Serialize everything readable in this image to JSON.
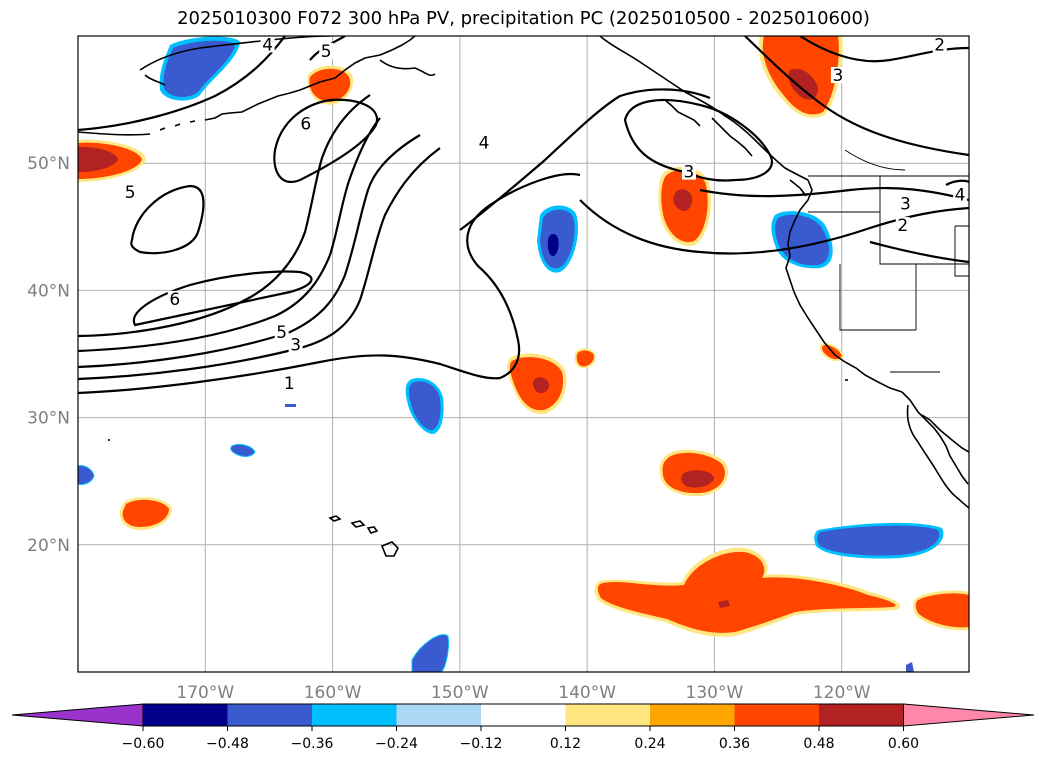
{
  "title": "2025010300 F072 300 hPa PV, precipitation PC (2025010500 - 2025010600)",
  "map": {
    "lon_range": [
      -180,
      -110
    ],
    "lat_range": [
      10,
      60
    ],
    "lat_ticks": [
      {
        "value": 20,
        "label": "20°N"
      },
      {
        "value": 30,
        "label": "30°N"
      },
      {
        "value": 40,
        "label": "40°N"
      },
      {
        "value": 50,
        "label": "50°N"
      }
    ],
    "lon_ticks": [
      {
        "value": -170,
        "label": "170°W"
      },
      {
        "value": -160,
        "label": "160°W"
      },
      {
        "value": -150,
        "label": "150°W"
      },
      {
        "value": -140,
        "label": "140°W"
      },
      {
        "value": -130,
        "label": "130°W"
      },
      {
        "value": -120,
        "label": "120°W"
      }
    ],
    "gridlines": true,
    "contour_labels": [
      {
        "text": "4",
        "lon": -165.1,
        "lat": 59.1
      },
      {
        "text": "5",
        "lon": -160.5,
        "lat": 58.6
      },
      {
        "text": "6",
        "lon": -162.1,
        "lat": 52.9
      },
      {
        "text": "4",
        "lon": -148.1,
        "lat": 51.4
      },
      {
        "text": "5",
        "lon": -175.9,
        "lat": 47.5
      },
      {
        "text": "6",
        "lon": -172.4,
        "lat": 39.1
      },
      {
        "text": "5",
        "lon": -164.0,
        "lat": 36.5
      },
      {
        "text": "3",
        "lon": -162.9,
        "lat": 35.5
      },
      {
        "text": "1",
        "lon": -163.4,
        "lat": 32.5
      },
      {
        "text": "3",
        "lon": -132.0,
        "lat": 49.1
      },
      {
        "text": "3",
        "lon": -120.3,
        "lat": 56.7
      },
      {
        "text": "2",
        "lon": -112.3,
        "lat": 59.1
      },
      {
        "text": "2",
        "lon": -115.2,
        "lat": 44.9
      },
      {
        "text": "3",
        "lon": -115.0,
        "lat": 46.6
      },
      {
        "text": "4",
        "lon": -110.7,
        "lat": 47.3
      }
    ],
    "colors": {
      "blue_mid": "#3a5bd0",
      "blue_dark": "#00008b",
      "cyan": "#00bfff",
      "light_blue": "#add8f5",
      "yellow": "#ffe680",
      "orange": "#ffa500",
      "orange_red": "#ff4500",
      "dark_red": "#b22222"
    }
  },
  "colorbar": {
    "colors": [
      "#9933cc",
      "#00008b",
      "#3a5bd0",
      "#00bfff",
      "#add8f5",
      "#ffffff",
      "#ffe680",
      "#ffa500",
      "#ff4500",
      "#b22222",
      "#ff88aa"
    ],
    "ticks": [
      "−0.60",
      "−0.48",
      "−0.36",
      "−0.24",
      "−0.12",
      "0.12",
      "0.24",
      "0.36",
      "0.48",
      "0.60"
    ]
  }
}
